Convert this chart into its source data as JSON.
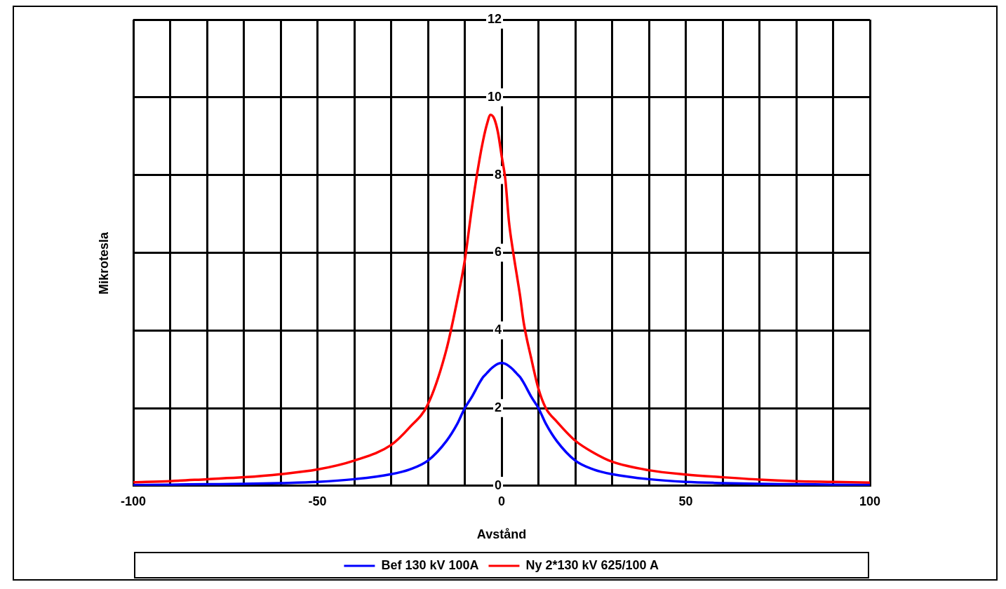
{
  "chart_data": {
    "type": "line",
    "xlabel": "Avstånd",
    "ylabel": "Mikrotesla",
    "x": [
      -100,
      -90,
      -80,
      -70,
      -60,
      -50,
      -40,
      -30,
      -25,
      -20,
      -15,
      -12,
      -10,
      -8,
      -6,
      -5,
      -4,
      -3,
      -2,
      -1,
      0,
      1,
      2,
      3,
      4,
      5,
      6,
      8,
      10,
      12,
      15,
      20,
      25,
      30,
      40,
      50,
      60,
      70,
      80,
      90,
      100
    ],
    "series": [
      {
        "name": "Bef 130 kV 100A",
        "color": "#0000ff",
        "values": [
          0.02,
          0.03,
          0.04,
          0.05,
          0.07,
          0.1,
          0.17,
          0.3,
          0.42,
          0.65,
          1.15,
          1.6,
          2.0,
          2.3,
          2.65,
          2.8,
          2.9,
          3.0,
          3.08,
          3.14,
          3.16,
          3.14,
          3.08,
          3.0,
          2.9,
          2.8,
          2.65,
          2.3,
          2.0,
          1.6,
          1.15,
          0.65,
          0.42,
          0.3,
          0.17,
          0.1,
          0.07,
          0.05,
          0.04,
          0.03,
          0.02
        ]
      },
      {
        "name": "Ny 2*130 kV 625/100 A",
        "color": "#ff0000",
        "values": [
          0.09,
          0.12,
          0.17,
          0.22,
          0.3,
          0.42,
          0.65,
          1.05,
          1.5,
          2.1,
          3.5,
          4.8,
          5.8,
          7.2,
          8.4,
          8.9,
          9.3,
          9.55,
          9.45,
          9.1,
          8.5,
          7.9,
          6.8,
          6.1,
          5.5,
          4.9,
          4.2,
          3.3,
          2.5,
          2.0,
          1.65,
          1.16,
          0.85,
          0.62,
          0.4,
          0.29,
          0.22,
          0.16,
          0.12,
          0.1,
          0.08
        ]
      }
    ],
    "xlim": [
      -100,
      100
    ],
    "xticks": [
      -100,
      {
        "value": -90,
        "label": null
      },
      {
        "value": -80,
        "label": null
      },
      {
        "value": -70,
        "label": null
      },
      {
        "value": -60,
        "label": null
      },
      -50,
      {
        "value": -40,
        "label": null
      },
      {
        "value": -30,
        "label": null
      },
      {
        "value": -20,
        "label": null
      },
      {
        "value": -10,
        "label": null
      },
      0,
      {
        "value": 10,
        "label": null
      },
      {
        "value": 20,
        "label": null
      },
      {
        "value": 30,
        "label": null
      },
      {
        "value": 40,
        "label": null
      },
      50,
      {
        "value": 60,
        "label": null
      },
      {
        "value": 70,
        "label": null
      },
      {
        "value": 80,
        "label": null
      },
      {
        "value": 90,
        "label": null
      },
      100
    ],
    "ylim": [
      0,
      12
    ],
    "yticks": [
      0,
      2,
      4,
      6,
      8,
      10,
      12
    ],
    "grid": true,
    "legend": "bottom",
    "marker": "none",
    "line_style": "solid"
  }
}
